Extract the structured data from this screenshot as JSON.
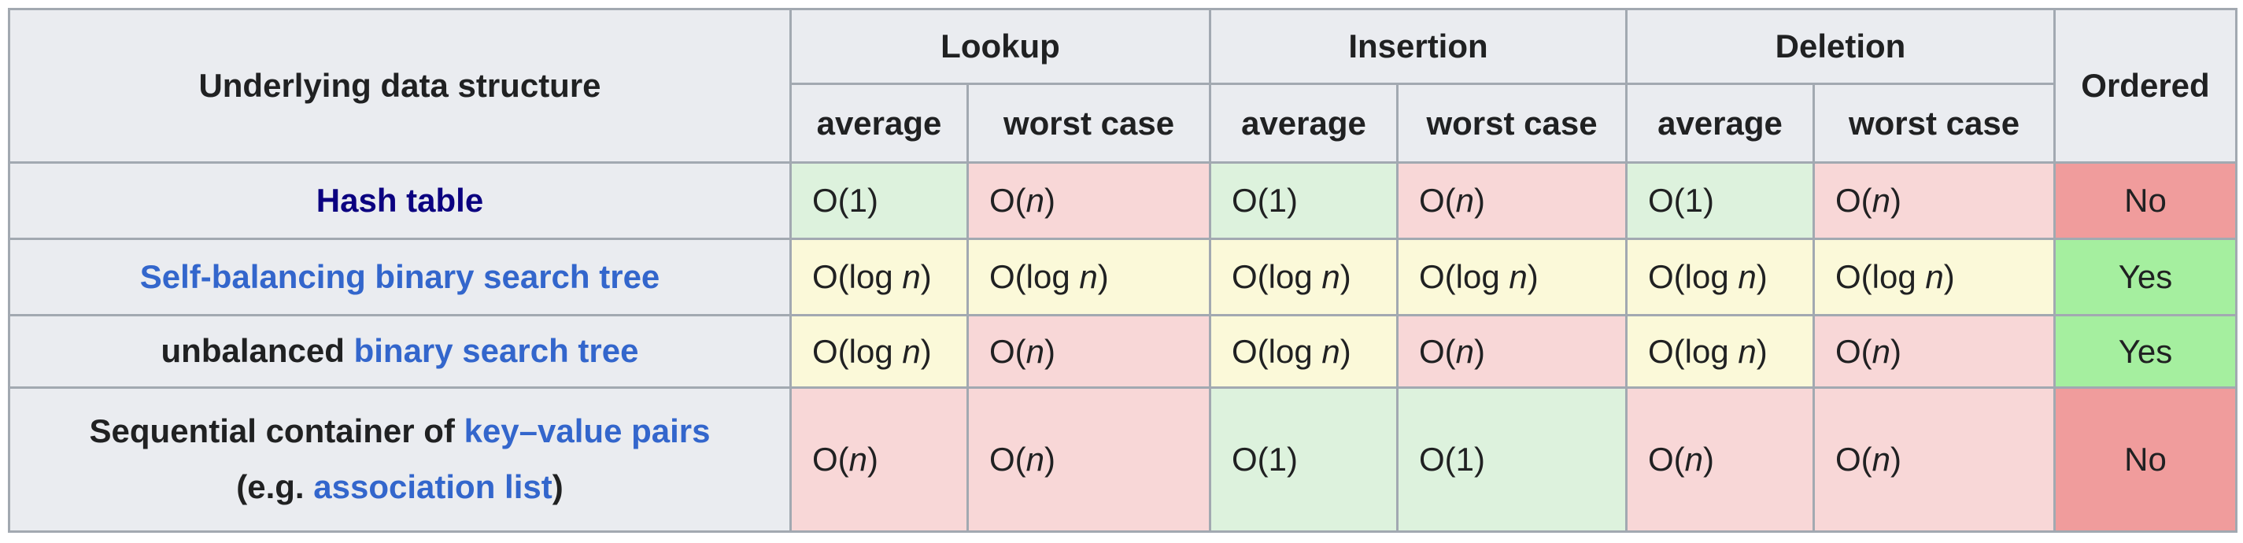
{
  "colors": {
    "header_bg": "#eaecf0",
    "border": "#a2a9b1",
    "cell_light_green": "#ddf2dd",
    "cell_light_red": "#f8d7d7",
    "cell_light_yellow": "#fbf9d9",
    "cell_yes_green": "#a5ef9f",
    "cell_no_red": "#f09c9c",
    "link_blue": "#3366cc",
    "link_visited": "#0b0080",
    "text": "#202122"
  },
  "table": {
    "header": {
      "row_label": "Underlying data structure",
      "groups": [
        "Lookup",
        "Insertion",
        "Deletion"
      ],
      "sub_headers": [
        "average",
        "worst case"
      ],
      "ordered_label": "Ordered"
    },
    "rows": [
      {
        "name_parts": [
          {
            "text": "Hash table",
            "style": "visited-link"
          }
        ],
        "complexities": [
          {
            "value": "O(1)",
            "tone": "good"
          },
          {
            "value": "O(n)",
            "tone": "bad"
          },
          {
            "value": "O(1)",
            "tone": "good"
          },
          {
            "value": "O(n)",
            "tone": "bad"
          },
          {
            "value": "O(1)",
            "tone": "good"
          },
          {
            "value": "O(n)",
            "tone": "bad"
          }
        ],
        "ordered": {
          "value": "No",
          "tone": "no"
        }
      },
      {
        "name_parts": [
          {
            "text": "Self-balancing binary search tree",
            "style": "link"
          }
        ],
        "complexities": [
          {
            "value": "O(log n)",
            "tone": "mid"
          },
          {
            "value": "O(log n)",
            "tone": "mid"
          },
          {
            "value": "O(log n)",
            "tone": "mid"
          },
          {
            "value": "O(log n)",
            "tone": "mid"
          },
          {
            "value": "O(log n)",
            "tone": "mid"
          },
          {
            "value": "O(log n)",
            "tone": "mid"
          }
        ],
        "ordered": {
          "value": "Yes",
          "tone": "yes"
        }
      },
      {
        "name_parts": [
          {
            "text": "unbalanced ",
            "style": "plain"
          },
          {
            "text": "binary search tree",
            "style": "link"
          }
        ],
        "complexities": [
          {
            "value": "O(log n)",
            "tone": "mid"
          },
          {
            "value": "O(n)",
            "tone": "bad"
          },
          {
            "value": "O(log n)",
            "tone": "mid"
          },
          {
            "value": "O(n)",
            "tone": "bad"
          },
          {
            "value": "O(log n)",
            "tone": "mid"
          },
          {
            "value": "O(n)",
            "tone": "bad"
          }
        ],
        "ordered": {
          "value": "Yes",
          "tone": "yes"
        }
      },
      {
        "name_parts": [
          {
            "text": "Sequential container of ",
            "style": "plain"
          },
          {
            "text": "key–value pairs",
            "style": "link"
          },
          {
            "text": "",
            "style": "break"
          },
          {
            "text": "(e.g. ",
            "style": "plain"
          },
          {
            "text": "association list",
            "style": "link"
          },
          {
            "text": ")",
            "style": "plain"
          }
        ],
        "complexities": [
          {
            "value": "O(n)",
            "tone": "bad"
          },
          {
            "value": "O(n)",
            "tone": "bad"
          },
          {
            "value": "O(1)",
            "tone": "good"
          },
          {
            "value": "O(1)",
            "tone": "good"
          },
          {
            "value": "O(n)",
            "tone": "bad"
          },
          {
            "value": "O(n)",
            "tone": "bad"
          }
        ],
        "ordered": {
          "value": "No",
          "tone": "no"
        }
      }
    ]
  }
}
